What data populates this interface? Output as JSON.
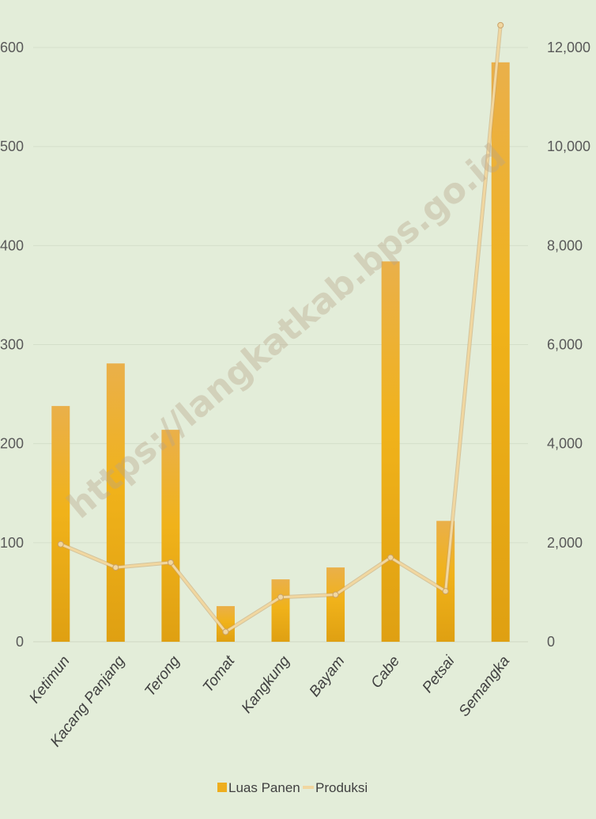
{
  "watermark": "https://langkatkab.bps.go.id",
  "colors": {
    "background": "#e3edd9",
    "grid": "#d4dfca",
    "bar": "#eeae1e",
    "line": "#f1d7a0",
    "line_edge": "#c9a26a"
  },
  "chart_data": {
    "type": "bar",
    "categories": [
      "Ketimun",
      "Kacang Panjang",
      "Terong",
      "Tomat",
      "Kangkung",
      "Bayam",
      "Cabe",
      "Petsai",
      "Semangka"
    ],
    "series": [
      {
        "name": "Luas Panen",
        "type": "bar",
        "axis": "left",
        "values": [
          238,
          281,
          214,
          36,
          63,
          75,
          384,
          122,
          585
        ]
      },
      {
        "name": "Produksi",
        "type": "line",
        "axis": "right",
        "values": [
          1970,
          1500,
          1600,
          200,
          900,
          950,
          1700,
          1020,
          12450
        ]
      }
    ],
    "y_left": {
      "ticks": [
        "0",
        "100",
        "200",
        "300",
        "400",
        "500",
        "600"
      ],
      "ylim": [
        0,
        600
      ]
    },
    "y_right": {
      "ticks": [
        "0",
        "2,000",
        "4,000",
        "6,000",
        "8,000",
        "10,000",
        "12,000"
      ],
      "ylim": [
        0,
        12000
      ]
    },
    "grid": true,
    "legend_position": "bottom",
    "legend": [
      "Luas Panen",
      "Produksi"
    ]
  }
}
